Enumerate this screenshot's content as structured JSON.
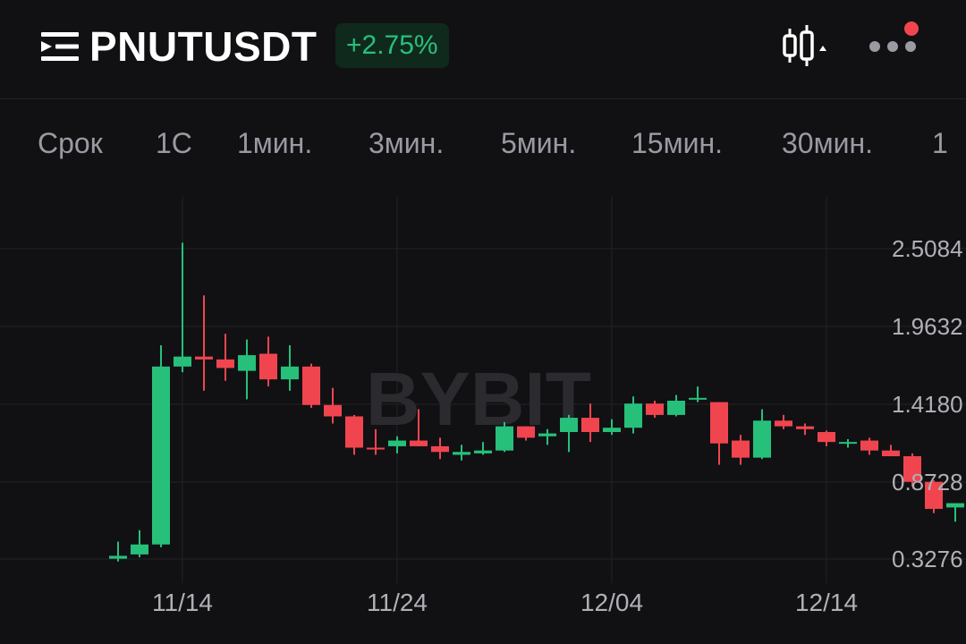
{
  "header": {
    "symbol": "PNUTUSDT",
    "change": "+2.75%",
    "menu_icon": "list-menu-icon",
    "candle_icon": "candlestick-icon",
    "more_icon": "more-dots-icon",
    "colors": {
      "up": "#27c07a",
      "down": "#f0454f",
      "badge_bg": "#10291d",
      "notification": "#f0454f"
    }
  },
  "timeframes": [
    "Срок",
    "1С",
    "1мин.",
    "3мин.",
    "5мин.",
    "15мин.",
    "30мин.",
    "1"
  ],
  "watermark": "BYBIT",
  "chart_data": {
    "type": "candlestick",
    "y_ticks": [
      "2.5084",
      "1.9632",
      "1.4180",
      "0.8728",
      "0.3276"
    ],
    "x_ticks": [
      "11/14",
      "11/24",
      "12/04",
      "12/14"
    ],
    "grid": true,
    "candles": [
      {
        "o": 0.33,
        "h": 0.45,
        "l": 0.31,
        "c": 0.35
      },
      {
        "o": 0.36,
        "h": 0.53,
        "l": 0.34,
        "c": 0.43
      },
      {
        "o": 0.43,
        "h": 1.83,
        "l": 0.41,
        "c": 1.68
      },
      {
        "o": 1.68,
        "h": 2.55,
        "l": 1.64,
        "c": 1.75
      },
      {
        "o": 1.75,
        "h": 2.18,
        "l": 1.51,
        "c": 1.73
      },
      {
        "o": 1.73,
        "h": 1.91,
        "l": 1.58,
        "c": 1.67
      },
      {
        "o": 1.65,
        "h": 1.87,
        "l": 1.45,
        "c": 1.76
      },
      {
        "o": 1.77,
        "h": 1.89,
        "l": 1.54,
        "c": 1.59
      },
      {
        "o": 1.59,
        "h": 1.83,
        "l": 1.51,
        "c": 1.68
      },
      {
        "o": 1.68,
        "h": 1.7,
        "l": 1.39,
        "c": 1.41
      },
      {
        "o": 1.41,
        "h": 1.53,
        "l": 1.28,
        "c": 1.33
      },
      {
        "o": 1.33,
        "h": 1.34,
        "l": 1.06,
        "c": 1.11
      },
      {
        "o": 1.11,
        "h": 1.24,
        "l": 1.06,
        "c": 1.1
      },
      {
        "o": 1.12,
        "h": 1.19,
        "l": 1.07,
        "c": 1.16
      },
      {
        "o": 1.16,
        "h": 1.38,
        "l": 1.12,
        "c": 1.12
      },
      {
        "o": 1.12,
        "h": 1.18,
        "l": 1.03,
        "c": 1.08
      },
      {
        "o": 1.06,
        "h": 1.13,
        "l": 1.02,
        "c": 1.08
      },
      {
        "o": 1.07,
        "h": 1.15,
        "l": 1.06,
        "c": 1.09
      },
      {
        "o": 1.09,
        "h": 1.29,
        "l": 1.08,
        "c": 1.26
      },
      {
        "o": 1.26,
        "h": 1.26,
        "l": 1.16,
        "c": 1.18
      },
      {
        "o": 1.19,
        "h": 1.24,
        "l": 1.13,
        "c": 1.21
      },
      {
        "o": 1.22,
        "h": 1.34,
        "l": 1.08,
        "c": 1.32
      },
      {
        "o": 1.32,
        "h": 1.42,
        "l": 1.15,
        "c": 1.22
      },
      {
        "o": 1.22,
        "h": 1.31,
        "l": 1.2,
        "c": 1.25
      },
      {
        "o": 1.25,
        "h": 1.47,
        "l": 1.21,
        "c": 1.42
      },
      {
        "o": 1.42,
        "h": 1.44,
        "l": 1.32,
        "c": 1.34
      },
      {
        "o": 1.34,
        "h": 1.48,
        "l": 1.33,
        "c": 1.44
      },
      {
        "o": 1.45,
        "h": 1.54,
        "l": 1.43,
        "c": 1.46
      },
      {
        "o": 1.43,
        "h": 1.43,
        "l": 0.99,
        "c": 1.14
      },
      {
        "o": 1.16,
        "h": 1.2,
        "l": 0.99,
        "c": 1.04
      },
      {
        "o": 1.04,
        "h": 1.38,
        "l": 1.03,
        "c": 1.3
      },
      {
        "o": 1.3,
        "h": 1.34,
        "l": 1.24,
        "c": 1.26
      },
      {
        "o": 1.26,
        "h": 1.28,
        "l": 1.2,
        "c": 1.24
      },
      {
        "o": 1.22,
        "h": 1.23,
        "l": 1.12,
        "c": 1.15
      },
      {
        "o": 1.14,
        "h": 1.17,
        "l": 1.11,
        "c": 1.15
      },
      {
        "o": 1.16,
        "h": 1.18,
        "l": 1.06,
        "c": 1.09
      },
      {
        "o": 1.09,
        "h": 1.13,
        "l": 1.05,
        "c": 1.05
      },
      {
        "o": 1.05,
        "h": 1.07,
        "l": 0.84,
        "c": 0.87
      },
      {
        "o": 0.87,
        "h": 0.88,
        "l": 0.65,
        "c": 0.68
      },
      {
        "o": 0.69,
        "h": 0.72,
        "l": 0.59,
        "c": 0.72
      }
    ]
  }
}
